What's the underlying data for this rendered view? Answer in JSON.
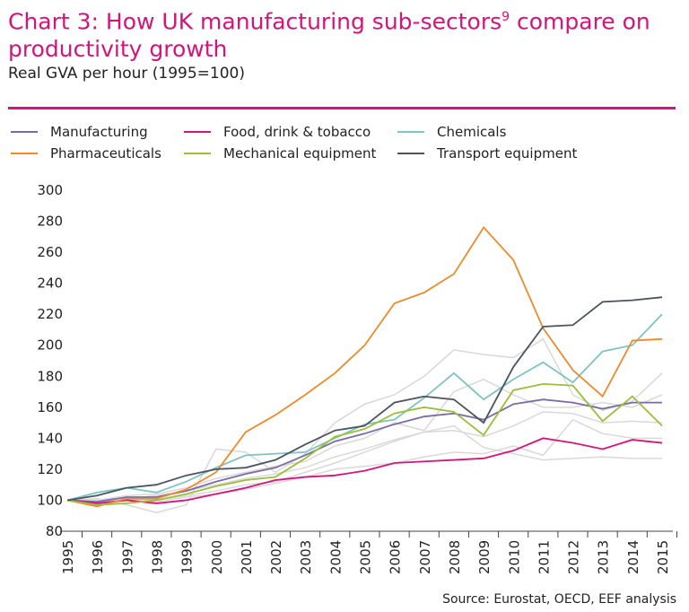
{
  "title": "Chart 3: How UK manufacturing sub-sectors",
  "title_sup": "9",
  "title_rest": " compare on productivity growth",
  "subtitle": "Real GVA per hour (1995=100)",
  "source": "Source: Eurostat, OECD, EEF analysis",
  "chart_data": {
    "type": "line",
    "ylim": [
      80,
      300
    ],
    "yticks": [
      80,
      100,
      120,
      140,
      160,
      180,
      200,
      220,
      240,
      260,
      280,
      300
    ],
    "x": [
      "1995",
      "1996",
      "1997",
      "1998",
      "1999",
      "2000",
      "2001",
      "2002",
      "2003",
      "2004",
      "2005",
      "2006",
      "2007",
      "2008",
      "2009",
      "2010",
      "2011",
      "2012",
      "2013",
      "2014",
      "2015"
    ],
    "legend_position": "top",
    "series": [
      {
        "name": "Manufacturing",
        "color": "#7b6aa8",
        "values": [
          100,
          99,
          102,
          102,
          106,
          112,
          117,
          121,
          129,
          138,
          143,
          149,
          154,
          156,
          152,
          162,
          165,
          163,
          159,
          163,
          163
        ]
      },
      {
        "name": "Food, drink & tobacco",
        "color": "#d4147a",
        "values": [
          100,
          98,
          100,
          98,
          100,
          104,
          108,
          113,
          115,
          116,
          119,
          124,
          125,
          126,
          127,
          132,
          140,
          137,
          133,
          139,
          137
        ]
      },
      {
        "name": "Chemicals",
        "color": "#7fc4c2",
        "values": [
          100,
          105,
          108,
          105,
          112,
          121,
          129,
          130,
          131,
          140,
          149,
          152,
          166,
          182,
          165,
          178,
          189,
          176,
          196,
          200,
          220
        ]
      },
      {
        "name": "Pharmaceuticals",
        "color": "#ef8a2a",
        "values": [
          100,
          96,
          101,
          101,
          107,
          118,
          144,
          155,
          168,
          182,
          200,
          227,
          234,
          246,
          276,
          255,
          211,
          184,
          167,
          203,
          204
        ]
      },
      {
        "name": "Mechanical equipment",
        "color": "#9bbf3b",
        "values": [
          100,
          97,
          98,
          100,
          104,
          109,
          113,
          115,
          127,
          141,
          146,
          156,
          160,
          157,
          142,
          171,
          175,
          174,
          151,
          167,
          148
        ]
      },
      {
        "name": "Transport equipment",
        "color": "#4a5462",
        "values": [
          100,
          103,
          108,
          110,
          116,
          120,
          121,
          126,
          136,
          145,
          148,
          163,
          167,
          165,
          150,
          186,
          212,
          213,
          228,
          229,
          231
        ]
      }
    ],
    "background_series": {
      "color": "#d9d9d9",
      "values": [
        [
          100,
          101,
          97,
          92,
          97,
          133,
          131,
          118,
          130,
          150,
          162,
          168,
          180,
          197,
          194,
          192,
          204,
          168,
          158,
          164,
          182
        ],
        [
          100,
          100,
          103,
          104,
          108,
          114,
          118,
          122,
          125,
          135,
          140,
          150,
          145,
          170,
          178,
          168,
          160,
          160,
          163,
          160,
          168
        ],
        [
          100,
          99,
          101,
          103,
          106,
          110,
          114,
          117,
          121,
          128,
          133,
          139,
          144,
          145,
          141,
          148,
          157,
          156,
          150,
          151,
          150
        ],
        [
          100,
          98,
          100,
          99,
          102,
          104,
          107,
          111,
          115,
          120,
          122,
          124,
          128,
          131,
          130,
          135,
          129,
          152,
          143,
          140,
          140
        ],
        [
          100,
          100,
          101,
          100,
          103,
          106,
          110,
          112,
          118,
          124,
          131,
          138,
          144,
          148,
          134,
          130,
          126,
          127,
          128,
          127,
          127
        ]
      ]
    }
  }
}
